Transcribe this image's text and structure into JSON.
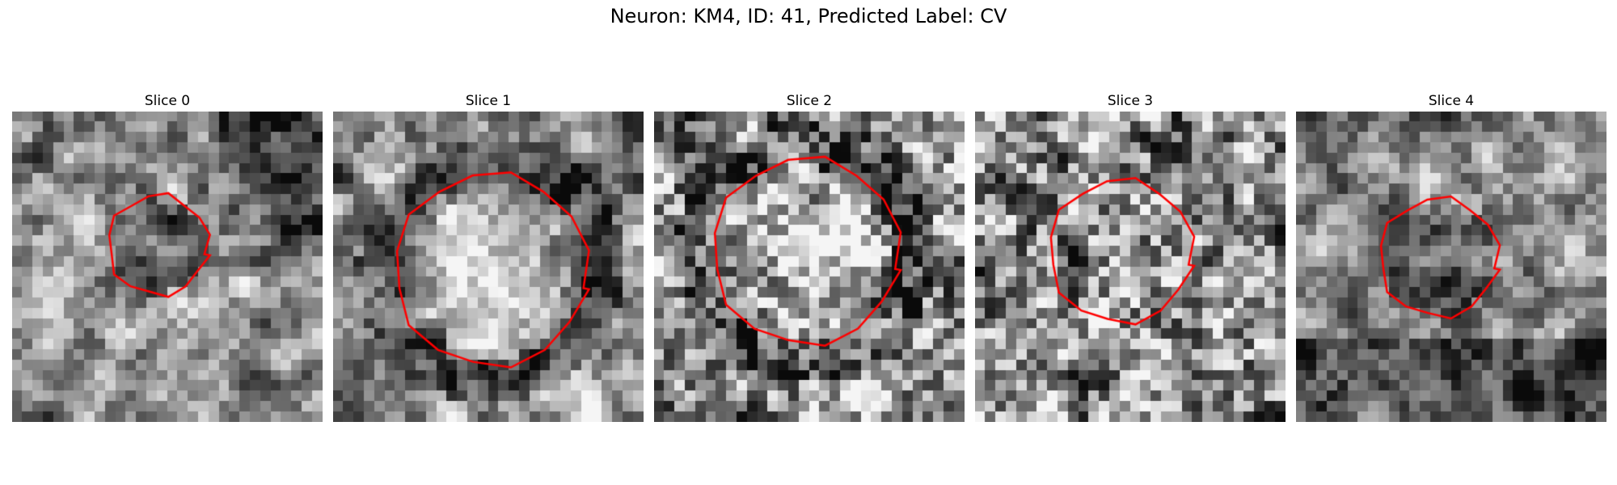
{
  "figure": {
    "title": "Neuron: KM4, ID: 41, Predicted Label: CV"
  },
  "slices": [
    {
      "label": "Slice 0",
      "seed": 11,
      "blur": 2,
      "vignette": "dark-top-right",
      "roi_radius": 0.16,
      "roi_center": [
        0.47,
        0.43
      ],
      "inner": "dark"
    },
    {
      "label": "Slice 1",
      "seed": 23,
      "blur": 2,
      "vignette": "ring",
      "roi_radius": 0.31,
      "roi_center": [
        0.51,
        0.51
      ],
      "inner": "bright"
    },
    {
      "label": "Slice 2",
      "seed": 37,
      "blur": 1,
      "vignette": "ring",
      "roi_radius": 0.3,
      "roi_center": [
        0.49,
        0.45
      ],
      "inner": "bright"
    },
    {
      "label": "Slice 3",
      "seed": 41,
      "blur": 1,
      "vignette": "none",
      "roi_radius": 0.23,
      "roi_center": [
        0.47,
        0.45
      ],
      "inner": "mid"
    },
    {
      "label": "Slice 4",
      "seed": 53,
      "blur": 2,
      "vignette": "dark-bottom",
      "roi_radius": 0.19,
      "roi_center": [
        0.46,
        0.47
      ],
      "inner": "dark"
    }
  ],
  "contour_color": "#ff0000",
  "colormap": "gray"
}
